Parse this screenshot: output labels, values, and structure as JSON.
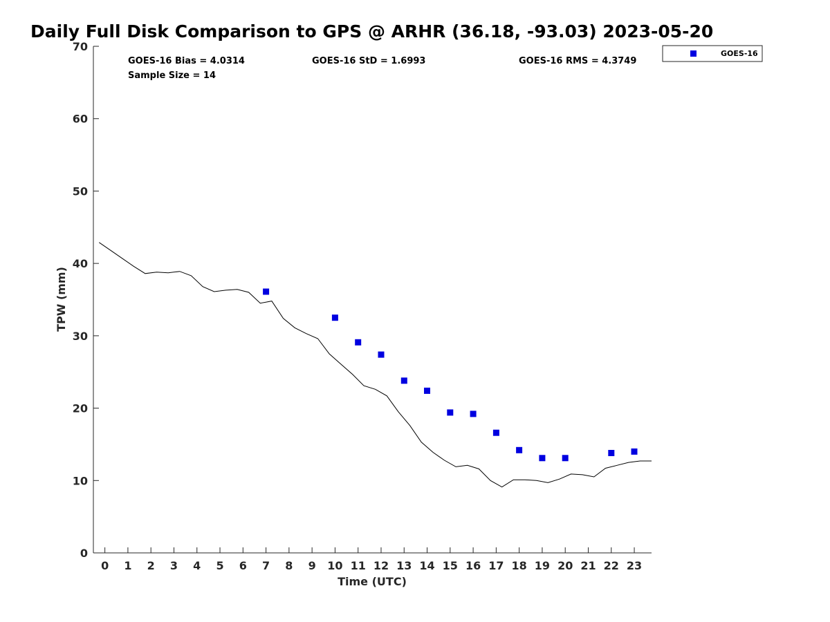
{
  "chart_data": {
    "type": "scatter",
    "title": "Daily Full Disk Comparison to GPS @ ARHR (36.18, -93.03) 2023-05-20",
    "xlabel": "Time (UTC)",
    "ylabel": "TPW (mm)",
    "xlim": [
      -0.5,
      23.75
    ],
    "ylim": [
      0,
      70
    ],
    "xticks": [
      0,
      1,
      2,
      3,
      4,
      5,
      6,
      7,
      8,
      9,
      10,
      11,
      12,
      13,
      14,
      15,
      16,
      17,
      18,
      19,
      20,
      21,
      22,
      23
    ],
    "yticks": [
      0,
      10,
      20,
      30,
      40,
      50,
      60,
      70
    ],
    "grid": false,
    "legend_position": "top-right, outside plot",
    "stats": {
      "bias": "GOES-16 Bias = 4.0314",
      "std": "GOES-16 StD = 1.6993",
      "rms": "GOES-16 RMS = 4.3749",
      "sample": "Sample Size = 14"
    },
    "series": [
      {
        "name": "GOES-16",
        "kind": "scatter",
        "marker": "square",
        "color": "#0000e0",
        "x": [
          7,
          10,
          11,
          12,
          13,
          14,
          15,
          16,
          17,
          18,
          19,
          20,
          22,
          23
        ],
        "y": [
          36.1,
          32.5,
          29.1,
          27.4,
          23.8,
          22.4,
          19.4,
          19.2,
          16.6,
          14.2,
          13.1,
          13.1,
          13.8,
          14.0
        ]
      },
      {
        "kind": "line",
        "color": "#000000",
        "x": [
          -0.25,
          0.25,
          0.75,
          1.25,
          1.75,
          2.25,
          2.75,
          3.25,
          3.75,
          4.25,
          4.75,
          5.25,
          5.75,
          6.25,
          6.75,
          7.25,
          7.75,
          8.25,
          8.75,
          9.25,
          9.75,
          10.25,
          10.75,
          11.25,
          11.75,
          12.25,
          12.75,
          13.25,
          13.75,
          14.25,
          14.75,
          15.25,
          15.75,
          16.25,
          16.75,
          17.25,
          17.75,
          18.25,
          18.75,
          19.25,
          19.75,
          20.25,
          20.75,
          21.25,
          21.75,
          22.25,
          22.75,
          23.25,
          23.75
        ],
        "y": [
          42.9,
          41.8,
          40.7,
          39.6,
          38.6,
          38.8,
          38.7,
          38.9,
          38.3,
          36.8,
          36.1,
          36.3,
          36.4,
          36.0,
          34.5,
          34.8,
          32.4,
          31.1,
          30.3,
          29.6,
          27.5,
          26.1,
          24.7,
          23.1,
          22.6,
          21.7,
          19.5,
          17.6,
          15.3,
          13.9,
          12.8,
          11.9,
          12.1,
          11.6,
          10.0,
          9.1,
          10.1,
          10.1,
          10.0,
          9.7,
          10.2,
          10.9,
          10.8,
          10.5,
          11.7,
          12.1,
          12.5,
          12.7,
          12.7
        ]
      }
    ]
  }
}
